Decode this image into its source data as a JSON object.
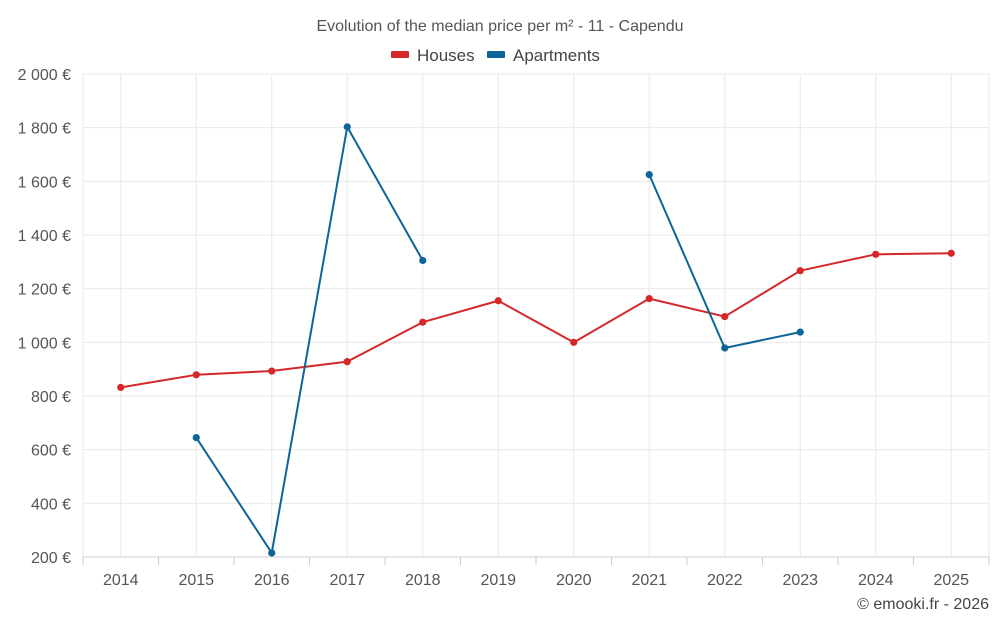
{
  "chart_data": {
    "type": "line",
    "title": "Evolution of the median price per m² - 11 - Capendu",
    "categories": [
      "2014",
      "2015",
      "2016",
      "2017",
      "2018",
      "2019",
      "2020",
      "2021",
      "2022",
      "2023",
      "2024",
      "2025"
    ],
    "ylim": [
      200,
      2000
    ],
    "yticks": [
      200,
      400,
      600,
      800,
      1000,
      1200,
      1400,
      1600,
      1800,
      2000
    ],
    "ytick_labels": [
      "200 €",
      "400 €",
      "600 €",
      "800 €",
      "1 000 €",
      "1 200 €",
      "1 400 €",
      "1 600 €",
      "1 800 €",
      "2 000 €"
    ],
    "grid": true,
    "legend_position": "top-center",
    "series": [
      {
        "name": "Houses",
        "color": "#d62728",
        "values": [
          832,
          879,
          893,
          928,
          1075,
          1155,
          1000,
          1163,
          1096,
          1267,
          1328,
          1332
        ]
      },
      {
        "name": "Apartments",
        "color": "#0b6596",
        "values": [
          null,
          645,
          215,
          1803,
          1305,
          null,
          null,
          1625,
          979,
          1038,
          null,
          null
        ]
      }
    ],
    "credit": "© emooki.fr - 2026"
  }
}
